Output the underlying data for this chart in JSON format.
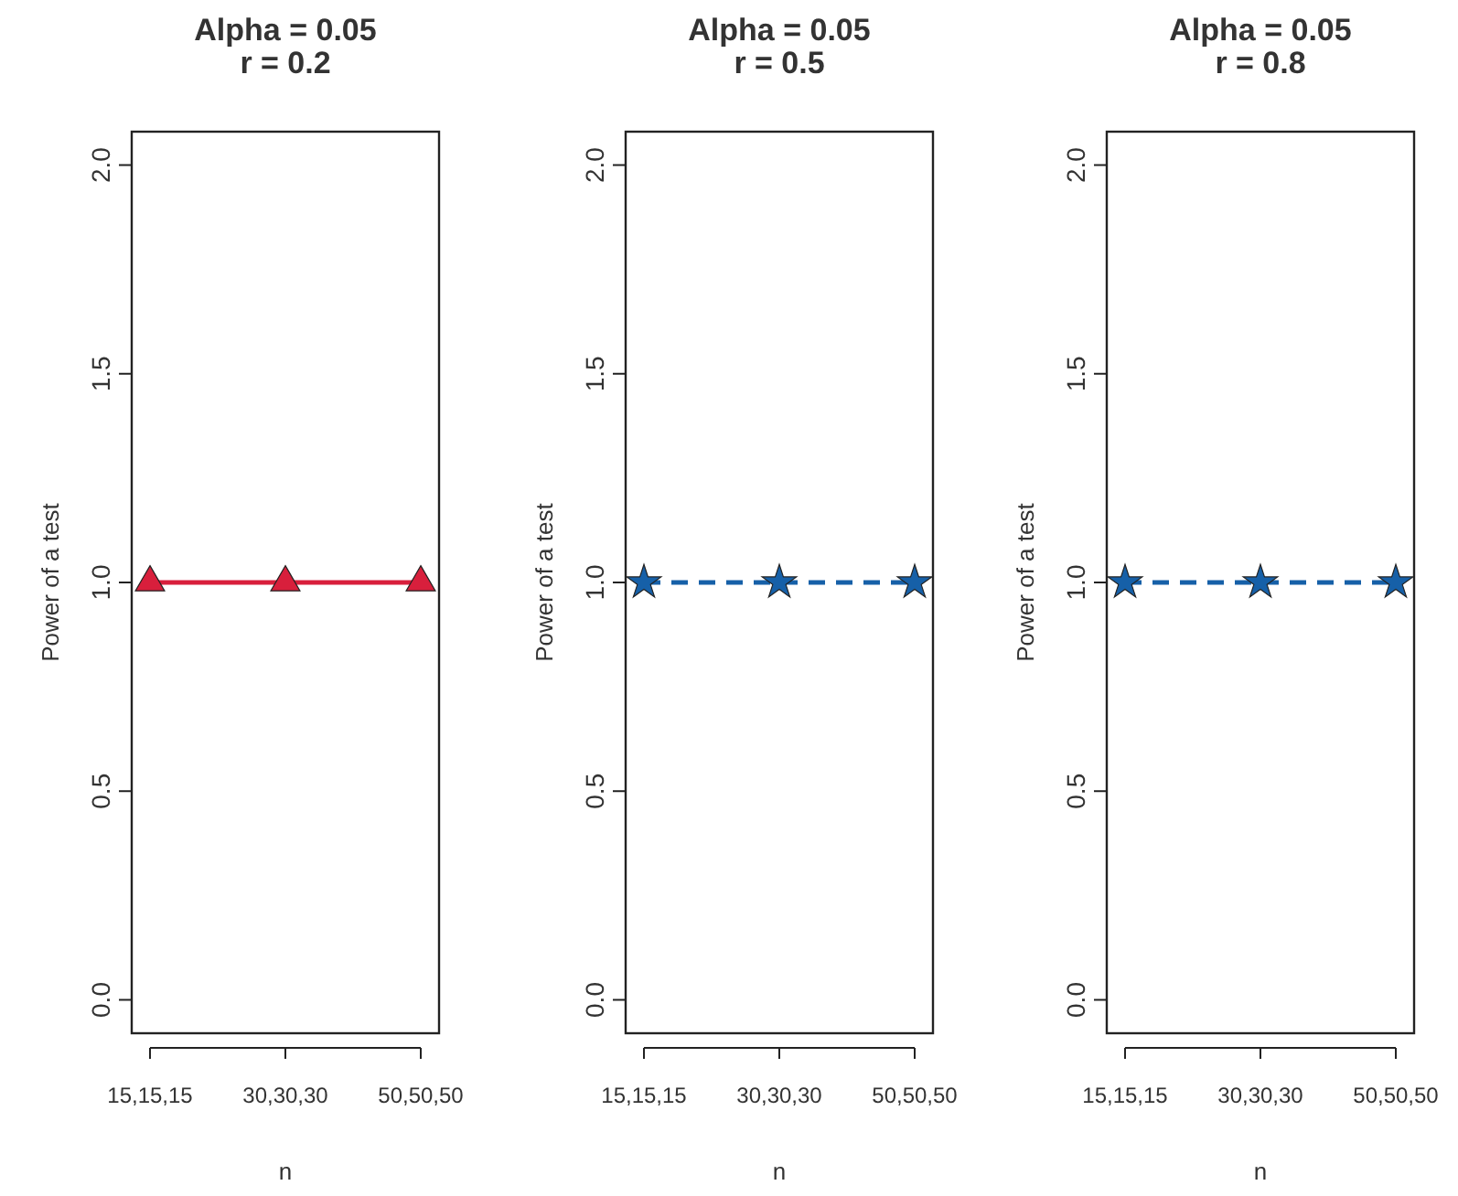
{
  "chart_data": [
    {
      "type": "line",
      "title": "Alpha = 0.05",
      "subtitle": "r = 0.2",
      "xlabel": "n",
      "ylabel": "Power of a test",
      "categories": [
        "15,15,15",
        "30,30,30",
        "50,50,50"
      ],
      "series": [
        {
          "color": "#d81f3c",
          "values": [
            1.0,
            1.0,
            1.0
          ],
          "marker": "triangle",
          "line_style": "solid"
        }
      ],
      "ylim": [
        -0.08,
        2.08
      ],
      "yticks": [
        {
          "value": 0,
          "label": "0.0"
        },
        {
          "value": 0.5,
          "label": "0.5"
        },
        {
          "value": 1,
          "label": "1.0"
        },
        {
          "value": 1.5,
          "label": "1.5"
        },
        {
          "value": 2,
          "label": "2.0"
        }
      ],
      "grid": false
    },
    {
      "type": "line",
      "title": "Alpha = 0.05",
      "subtitle": "r = 0.5",
      "xlabel": "n",
      "ylabel": "Power of a test",
      "categories": [
        "15,15,15",
        "30,30,30",
        "50,50,50"
      ],
      "series": [
        {
          "color": "#1660a8",
          "values": [
            1.0,
            1.0,
            1.0
          ],
          "marker": "star",
          "line_style": "dashed"
        }
      ],
      "ylim": [
        -0.08,
        2.08
      ],
      "yticks": [
        {
          "value": 0,
          "label": "0.0"
        },
        {
          "value": 0.5,
          "label": "0.5"
        },
        {
          "value": 1,
          "label": "1.0"
        },
        {
          "value": 1.5,
          "label": "1.5"
        },
        {
          "value": 2,
          "label": "2.0"
        }
      ],
      "grid": false
    },
    {
      "type": "line",
      "title": "Alpha = 0.05",
      "subtitle": "r = 0.8",
      "xlabel": "n",
      "ylabel": "Power of a test",
      "categories": [
        "15,15,15",
        "30,30,30",
        "50,50,50"
      ],
      "series": [
        {
          "color": "#1660a8",
          "values": [
            1.0,
            1.0,
            1.0
          ],
          "marker": "star",
          "line_style": "dashed"
        }
      ],
      "ylim": [
        -0.08,
        2.08
      ],
      "yticks": [
        {
          "value": 0,
          "label": "0.0"
        },
        {
          "value": 0.5,
          "label": "0.5"
        },
        {
          "value": 1,
          "label": "1.0"
        },
        {
          "value": 1.5,
          "label": "1.5"
        },
        {
          "value": 2,
          "label": "2.0"
        }
      ],
      "grid": false
    }
  ]
}
